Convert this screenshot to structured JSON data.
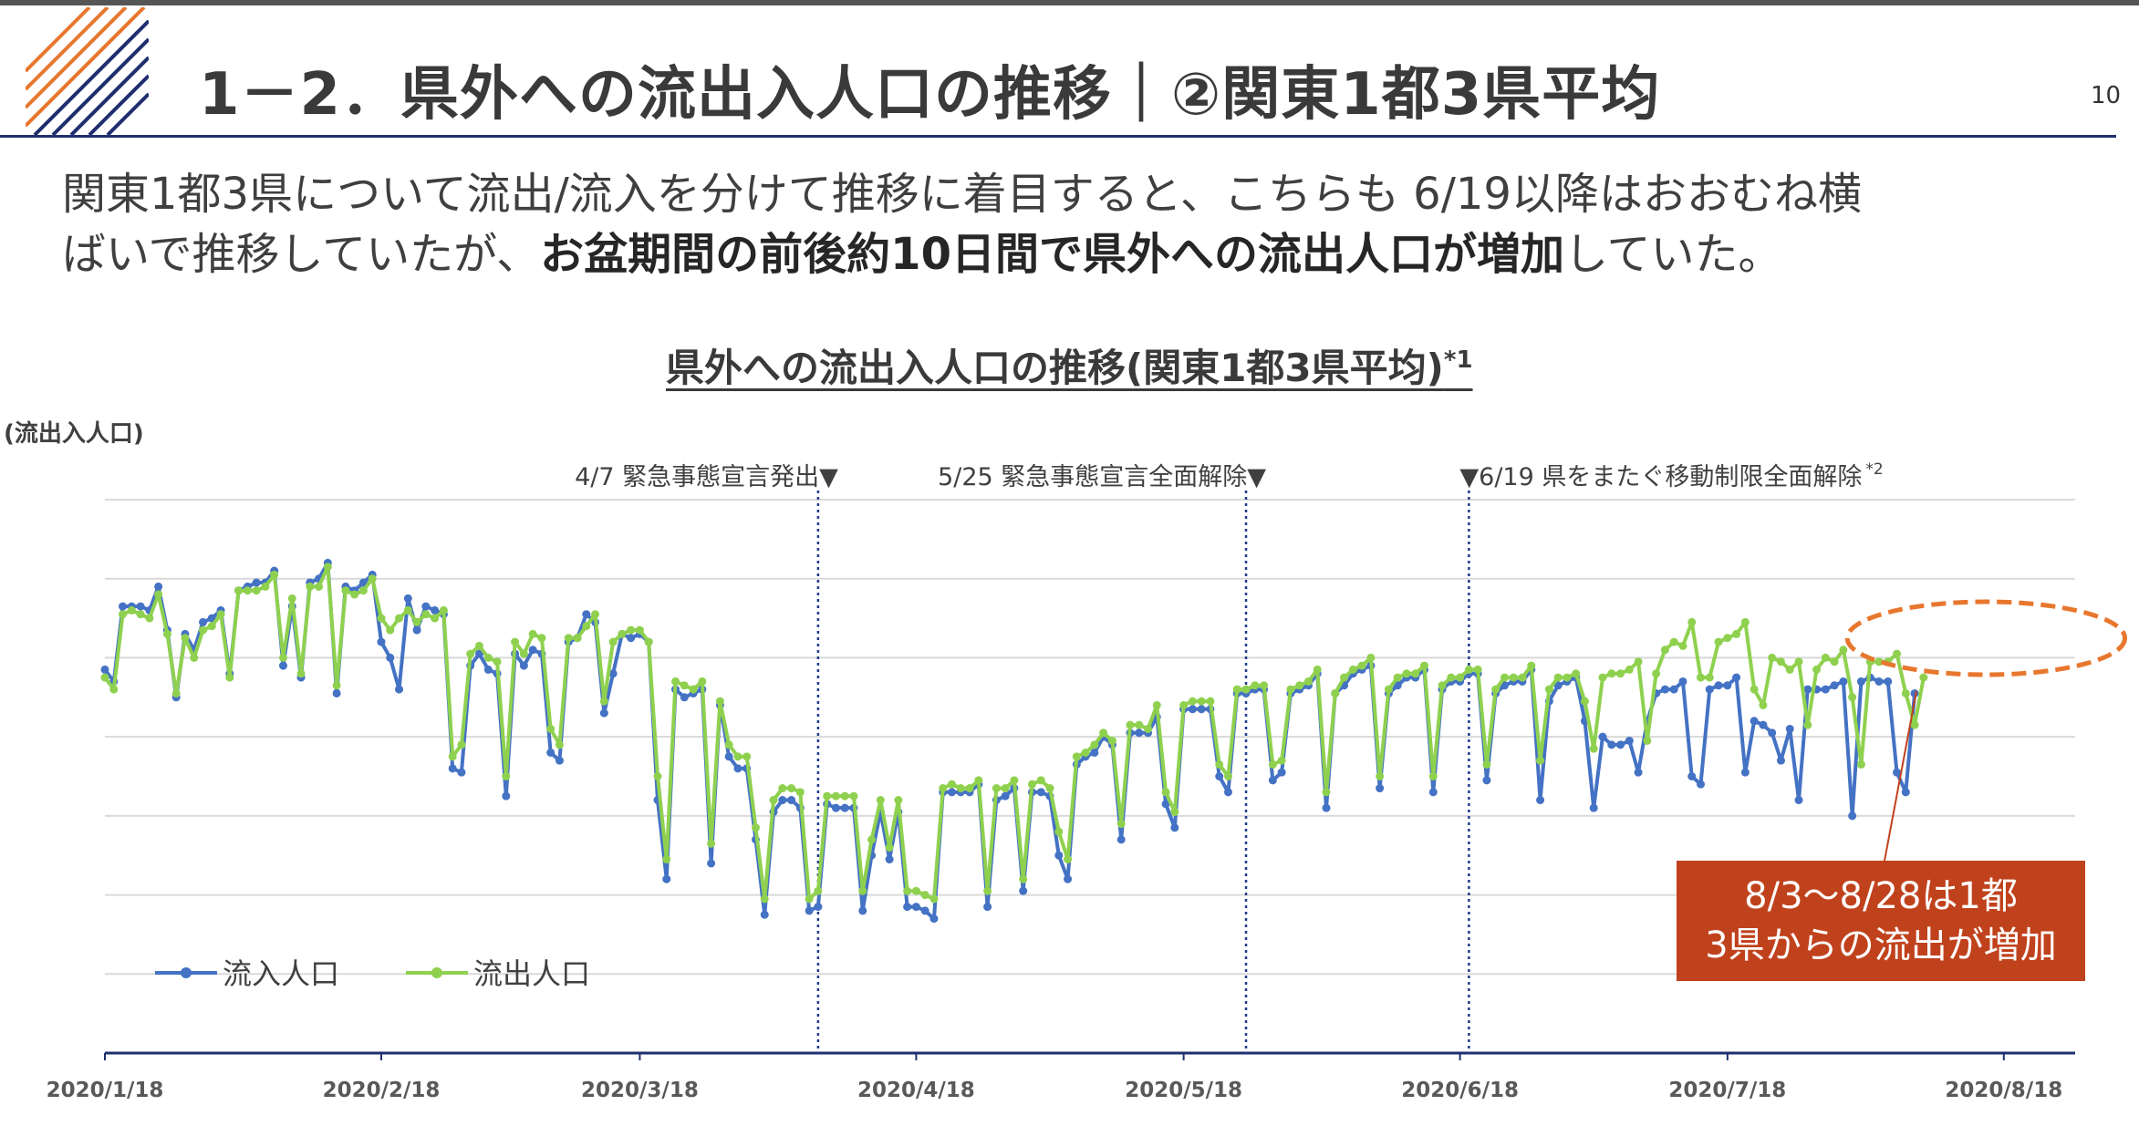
{
  "header": {
    "title": "1－2．県外への流出入人口の推移｜②関東1都3県平均",
    "page_number": "10"
  },
  "description": {
    "line1": "関東1都3県について流出/流入を分けて推移に着目すると、こちらも 6/19以降はおおむね横",
    "line2_normal": "ばいで推移していたが、",
    "line2_bold": "お盆期間の前後約10日間で県外への流出人口が増加",
    "line2_end": "していた。"
  },
  "colors": {
    "inflow": "#4472c4",
    "outflow": "#8fd14f",
    "callout": "#c0421c",
    "event_line": "#1f3b8c",
    "accent_orange": "#e8772e"
  },
  "chart_data": {
    "type": "line",
    "title": "県外への流出入人口の推移(関東1都3県平均)",
    "title_note": "*1",
    "ylabel": "(流出入人口)",
    "ylim": [
      0,
      7
    ],
    "grid": true,
    "x_start": "2020-01-18",
    "x_end": "2020-08-26",
    "x_ticks": [
      "2020/1/18",
      "2020/2/18",
      "2020/3/18",
      "2020/4/18",
      "2020/5/18",
      "2020/6/18",
      "2020/7/18",
      "2020/8/18"
    ],
    "legend_position": "bottom-left",
    "events": [
      {
        "date": "2020-04-07",
        "label": "4/7 緊急事態宣言発出▼"
      },
      {
        "date": "2020-05-25",
        "label": "5/25 緊急事態宣言全面解除▼"
      },
      {
        "date": "2020-06-19",
        "label": "▼6/19 県をまたぐ移動制限全面解除",
        "note": "*2"
      }
    ],
    "annotation": {
      "text_line1": "8/3～8/28は1都",
      "text_line2": "3県からの流出が増加",
      "range": [
        "2020-08-03",
        "2020-08-28"
      ]
    },
    "series": [
      {
        "name": "流入人口",
        "values": [
          4.85,
          4.7,
          5.65,
          5.65,
          5.65,
          5.6,
          5.9,
          5.35,
          4.5,
          5.3,
          5.1,
          5.45,
          5.5,
          5.6,
          4.8,
          5.85,
          5.9,
          5.95,
          5.95,
          6.1,
          4.9,
          5.65,
          4.75,
          5.95,
          6.0,
          6.2,
          4.55,
          5.9,
          5.85,
          5.95,
          6.05,
          5.2,
          5.0,
          4.6,
          5.75,
          5.35,
          5.65,
          5.6,
          5.55,
          3.6,
          3.55,
          4.9,
          5.05,
          4.85,
          4.8,
          3.25,
          5.05,
          4.9,
          5.1,
          5.05,
          3.8,
          3.7,
          5.2,
          5.25,
          5.55,
          5.45,
          4.3,
          4.8,
          5.3,
          5.25,
          5.3,
          5.2,
          3.2,
          2.2,
          4.6,
          4.5,
          4.55,
          4.6,
          2.4,
          4.4,
          3.75,
          3.6,
          3.6,
          2.7,
          1.75,
          3.05,
          3.2,
          3.2,
          3.1,
          1.8,
          1.85,
          3.15,
          3.1,
          3.1,
          3.1,
          1.8,
          2.5,
          3.05,
          2.45,
          3.05,
          1.85,
          1.85,
          1.8,
          1.7,
          3.3,
          3.3,
          3.3,
          3.3,
          3.4,
          1.85,
          3.2,
          3.25,
          3.35,
          2.05,
          3.3,
          3.3,
          3.25,
          2.5,
          2.2,
          3.65,
          3.75,
          3.8,
          4.0,
          3.9,
          2.7,
          4.05,
          4.05,
          4.05,
          4.25,
          3.15,
          2.85,
          4.35,
          4.35,
          4.35,
          4.35,
          3.5,
          3.3,
          4.55,
          4.55,
          4.6,
          4.6,
          3.45,
          3.55,
          4.55,
          4.6,
          4.65,
          4.8,
          3.1,
          4.55,
          4.65,
          4.8,
          4.85,
          4.9,
          3.35,
          4.55,
          4.65,
          4.75,
          4.75,
          4.85,
          3.3,
          4.6,
          4.7,
          4.7,
          4.8,
          4.8,
          3.45,
          4.55,
          4.65,
          4.7,
          4.7,
          4.85,
          3.2,
          4.45,
          4.65,
          4.7,
          4.75,
          4.2,
          3.1,
          4.0,
          3.9,
          3.9,
          3.95,
          3.55,
          4.2,
          4.55,
          4.6,
          4.6,
          4.7,
          3.5,
          3.4,
          4.6,
          4.65,
          4.65,
          4.75,
          3.55,
          4.2,
          4.15,
          4.05,
          3.7,
          4.1,
          3.2,
          4.6,
          4.6,
          4.6,
          4.65,
          4.7,
          3.0,
          4.7,
          4.75,
          4.7,
          4.7,
          3.55,
          3.3,
          4.55
        ]
      },
      {
        "name": "流出人口",
        "values": [
          4.75,
          4.6,
          5.55,
          5.6,
          5.55,
          5.5,
          5.8,
          5.3,
          4.55,
          5.25,
          5.0,
          5.35,
          5.4,
          5.55,
          4.75,
          5.85,
          5.85,
          5.85,
          5.9,
          6.05,
          5.0,
          5.75,
          4.8,
          5.9,
          5.9,
          6.15,
          4.65,
          5.85,
          5.8,
          5.85,
          6.0,
          5.5,
          5.35,
          5.5,
          5.6,
          5.45,
          5.55,
          5.5,
          5.6,
          3.75,
          3.9,
          5.05,
          5.15,
          5.0,
          4.95,
          3.5,
          5.2,
          5.05,
          5.3,
          5.25,
          4.1,
          3.9,
          5.25,
          5.25,
          5.4,
          5.55,
          4.45,
          5.2,
          5.3,
          5.35,
          5.35,
          5.2,
          3.5,
          2.45,
          4.7,
          4.65,
          4.6,
          4.7,
          2.65,
          4.45,
          3.9,
          3.75,
          3.75,
          2.85,
          1.95,
          3.2,
          3.35,
          3.35,
          3.3,
          1.95,
          2.05,
          3.25,
          3.25,
          3.25,
          3.25,
          2.05,
          2.7,
          3.2,
          2.6,
          3.2,
          2.05,
          2.05,
          2.0,
          1.95,
          3.35,
          3.4,
          3.35,
          3.35,
          3.45,
          2.05,
          3.35,
          3.35,
          3.45,
          2.2,
          3.4,
          3.45,
          3.35,
          2.8,
          2.45,
          3.75,
          3.8,
          3.9,
          4.05,
          3.95,
          2.9,
          4.15,
          4.15,
          4.1,
          4.4,
          3.3,
          3.05,
          4.4,
          4.45,
          4.45,
          4.45,
          3.65,
          3.5,
          4.6,
          4.6,
          4.65,
          4.65,
          3.65,
          3.7,
          4.6,
          4.65,
          4.7,
          4.85,
          3.3,
          4.55,
          4.75,
          4.85,
          4.9,
          5.0,
          3.5,
          4.6,
          4.75,
          4.8,
          4.8,
          4.9,
          3.5,
          4.65,
          4.75,
          4.75,
          4.85,
          4.85,
          3.65,
          4.6,
          4.75,
          4.75,
          4.75,
          4.9,
          3.7,
          4.6,
          4.75,
          4.75,
          4.8,
          4.45,
          3.85,
          4.75,
          4.8,
          4.8,
          4.85,
          4.95,
          3.95,
          4.8,
          5.1,
          5.2,
          5.15,
          5.45,
          4.75,
          4.75,
          5.2,
          5.25,
          5.3,
          5.45,
          4.6,
          4.4,
          5.0,
          4.95,
          4.85,
          4.95,
          4.15,
          4.85,
          5.0,
          4.95,
          5.1,
          4.5,
          3.65,
          4.95,
          4.95,
          4.95,
          5.05,
          4.55,
          4.15,
          4.75
        ]
      }
    ]
  }
}
